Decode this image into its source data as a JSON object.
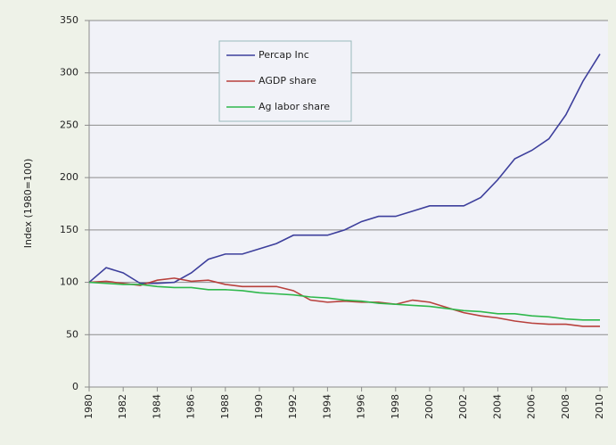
{
  "chart_data": {
    "type": "line",
    "y_label": "Index (1980=100)",
    "x": [
      1980,
      1981,
      1982,
      1983,
      1984,
      1985,
      1986,
      1987,
      1988,
      1989,
      1990,
      1991,
      1992,
      1993,
      1994,
      1995,
      1996,
      1997,
      1998,
      1999,
      2000,
      2001,
      2002,
      2003,
      2004,
      2005,
      2006,
      2007,
      2008,
      2009,
      2010
    ],
    "xlim": [
      1980,
      2010
    ],
    "xticks": [
      1980,
      1982,
      1984,
      1986,
      1988,
      1990,
      1992,
      1994,
      1996,
      1998,
      2000,
      2002,
      2004,
      2006,
      2008,
      2010
    ],
    "ylim": [
      0,
      350
    ],
    "yticks": [
      0,
      50,
      100,
      150,
      200,
      250,
      300,
      350
    ],
    "grid": true,
    "legend": "top-left",
    "series": [
      {
        "name": "Percap Inc",
        "color": "#3d3f9c",
        "values": [
          100,
          114,
          109,
          99,
          99,
          100,
          109,
          122,
          127,
          127,
          132,
          137,
          145,
          145,
          145,
          150,
          158,
          163,
          163,
          168,
          173,
          173,
          173,
          181,
          198,
          218,
          226,
          237,
          260,
          292,
          318
        ]
      },
      {
        "name": "AGDP share",
        "color": "#b8403c",
        "values": [
          100,
          101,
          99,
          97,
          102,
          104,
          101,
          102,
          98,
          96,
          96,
          96,
          92,
          83,
          81,
          82,
          81,
          81,
          79,
          83,
          81,
          76,
          71,
          68,
          66,
          63,
          61,
          60,
          60,
          58,
          58
        ]
      },
      {
        "name": "Ag labor share",
        "color": "#2fb84c",
        "values": [
          100,
          99,
          98,
          98,
          96,
          95,
          95,
          93,
          93,
          92,
          90,
          89,
          88,
          86,
          85,
          83,
          82,
          80,
          79,
          78,
          77,
          75,
          73,
          72,
          70,
          70,
          68,
          67,
          65,
          64,
          64
        ]
      }
    ]
  }
}
